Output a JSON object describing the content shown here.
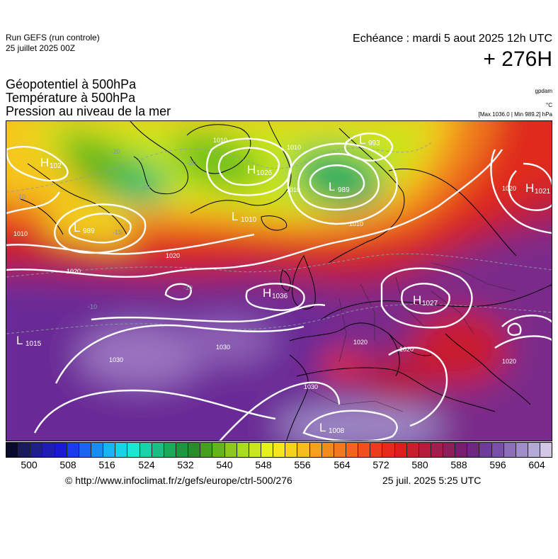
{
  "header": {
    "run_title": "Run GEFS (run controle)",
    "run_date": "25 juillet 2025 00Z",
    "echeance": "Echéance : mardi 5 aout 2025 12h UTC",
    "lead_time": "+ 276H"
  },
  "parameters": [
    "Géopotentiel à 500hPa",
    "Température à 500hPa",
    "Pression au niveau de la mer"
  ],
  "units": {
    "geopotential": "gpdam",
    "temperature": "°C",
    "pressure": "[Max 1036.0 | Min 989.2] hPa"
  },
  "map": {
    "pressure_centers": [
      {
        "type": "H",
        "value": "102"
      },
      {
        "type": "H",
        "value": "1026"
      },
      {
        "type": "L",
        "value": "993"
      },
      {
        "type": "L",
        "value": "989"
      },
      {
        "type": "H",
        "value": "1021"
      },
      {
        "type": "L",
        "value": "989"
      },
      {
        "type": "L",
        "value": "1010"
      },
      {
        "type": "H",
        "value": "1036"
      },
      {
        "type": "H",
        "value": "1027"
      },
      {
        "type": "L",
        "value": "1015"
      },
      {
        "type": "L",
        "value": "1008"
      }
    ],
    "isobar_labels": [
      "1010",
      "1010",
      "1010",
      "1010",
      "1010",
      "1020",
      "1020",
      "1020",
      "1020",
      "1030",
      "1030",
      "1030",
      "1020",
      "1020"
    ],
    "temperature_labels": [
      "-20",
      "-20",
      "-15",
      "-15",
      "-10",
      "-10",
      "-10"
    ],
    "colors": {
      "low_geopotential": "#1fbf6a",
      "mid_geopotential": "#f0d800",
      "high_geopotential": "#e83010",
      "very_high_geopotential": "#6a2a96",
      "isobars": "#ffffff",
      "coastlines": "#000000"
    }
  },
  "colorbar": {
    "colors": [
      "#0a0a2e",
      "#1a1a5e",
      "#1f1f8a",
      "#1e1eb0",
      "#1a1ad2",
      "#1a3cf0",
      "#1a64f0",
      "#1a8cf0",
      "#1ab4f0",
      "#1ad2e6",
      "#1ae6d2",
      "#1ad2aa",
      "#1abe82",
      "#1aaa5a",
      "#1e9640",
      "#288c28",
      "#46a01e",
      "#64b41e",
      "#8cc81e",
      "#aadc1e",
      "#c8e61e",
      "#e6f01e",
      "#f5e61e",
      "#f5d21e",
      "#f5be1e",
      "#f5a01e",
      "#f08c1e",
      "#f0781e",
      "#f0641e",
      "#f0501e",
      "#eb3c1e",
      "#e6281e",
      "#dc1e1e",
      "#c81e2d",
      "#b41e3c",
      "#a01e4b",
      "#8c1e5a",
      "#781e6e",
      "#6e2882",
      "#6e3c96",
      "#7850aa",
      "#8c6eb9",
      "#a08cc8",
      "#b4aad7",
      "#d2c8e6"
    ],
    "ticks": [
      "500",
      "508",
      "516",
      "524",
      "532",
      "540",
      "548",
      "556",
      "564",
      "572",
      "580",
      "588",
      "596",
      "604"
    ]
  },
  "footer": {
    "credit": "© http://www.infoclimat.fr/z/gefs/europe/ctrl-500/276",
    "generated": "25 juil. 2025  5:25 UTC"
  }
}
